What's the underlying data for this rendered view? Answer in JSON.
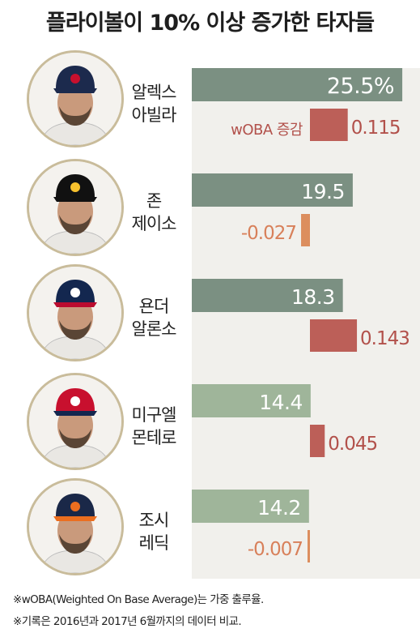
{
  "title": "플라이볼이 10% 이상 증가한 타자들",
  "woba_label": "wOBA 증감",
  "footnotes": [
    "※wOBA(Weighted On Base Average)는 가중 출루율.",
    "※기록은 2016년과 2017년 6월까지의 데이터 비교."
  ],
  "players": [
    {
      "name_line1": "알렉스",
      "name_line2": "아빌라",
      "cap": "twins-cap-icon"
    },
    {
      "name_line1": "존",
      "name_line2": "제이소",
      "cap": "pirates-cap-icon"
    },
    {
      "name_line1": "욘더",
      "name_line2": "알론소",
      "cap": "braves-cap-icon"
    },
    {
      "name_line1": "미구엘",
      "name_line2": "몬테로",
      "cap": "nationals-cap-icon"
    },
    {
      "name_line1": "조시",
      "name_line2": "레딕",
      "cap": "astros-cap-icon"
    }
  ],
  "colors": {
    "flyball_bar": "#7b9082",
    "flyball_bar_light": "#9fb59a",
    "woba_positive": "#bc5f58",
    "woba_negative": "#dc8e5e",
    "flyball_label": "#ffffff",
    "woba_label_positive": "#b2514b",
    "woba_label_negative": "#d8805a",
    "frame": "#c9bc9b"
  },
  "chart_data": {
    "type": "bar",
    "categories": [
      "알렉스 아빌라",
      "존 제이소",
      "욘더 알론소",
      "미구엘 몬테로",
      "조시 레딕"
    ],
    "series": [
      {
        "values": [
          25.5,
          19.5,
          18.3,
          14.4,
          14.2
        ],
        "labels": [
          "25.5%",
          "19.5",
          "18.3",
          "14.4",
          "14.2"
        ]
      },
      {
        "name": "wOBA 증감",
        "values": [
          0.115,
          -0.027,
          0.143,
          0.045,
          -0.007
        ],
        "labels": [
          "0.115",
          "-0.027",
          "0.143",
          "0.045",
          "-0.007"
        ]
      }
    ]
  }
}
